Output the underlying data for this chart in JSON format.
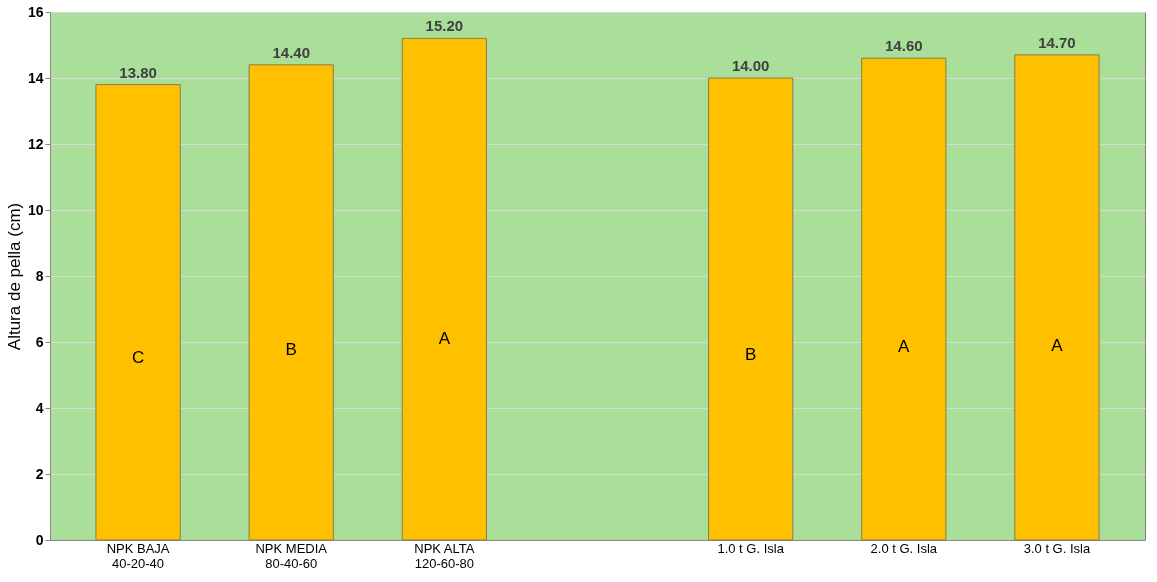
{
  "chart_data": {
    "type": "bar",
    "ylabel": "Altura de pella (cm)",
    "categories": [
      "NPK BAJA\n40-20-40",
      "NPK MEDIA\n80-40-60",
      "NPK ALTA\n120-60-80",
      null,
      "1.0 t G. Isla",
      "2.0 t G. Isla",
      "3.0 t G. Isla"
    ],
    "values": [
      13.8,
      14.4,
      15.2,
      null,
      14.0,
      14.6,
      14.7
    ],
    "value_labels": [
      "13.80",
      "14.40",
      "15.20",
      null,
      "14.00",
      "14.60",
      "14.70"
    ],
    "color": "#ffc000",
    "ylim": [
      0,
      16
    ],
    "yticks": [
      0,
      2,
      4,
      6,
      8,
      10,
      12,
      14,
      16
    ],
    "grid": "y",
    "annotations": [
      "C",
      "B",
      "A",
      "B",
      "A",
      "A"
    ]
  }
}
